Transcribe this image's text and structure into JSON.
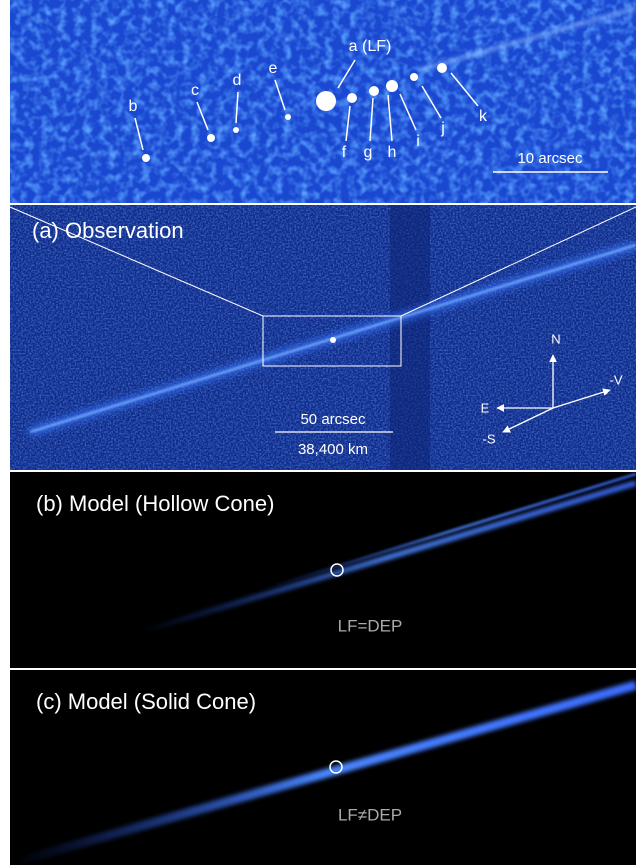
{
  "zoom_panel": {
    "labels": [
      "a (LF)",
      "b",
      "c",
      "d",
      "e",
      "f",
      "g",
      "h",
      "i",
      "j",
      "k"
    ],
    "scale_bar": "10 arcsec"
  },
  "observation": {
    "title": "(a) Observation",
    "scale_bar": "50 arcsec",
    "scale_distance": "38,400 km",
    "compass": {
      "north": "N",
      "east": "E",
      "velocity": "-V",
      "sun": "-S"
    }
  },
  "hollow_model": {
    "title": "(b) Model (Hollow Cone)",
    "note": "LF=DEP"
  },
  "solid_model": {
    "title": "(c) Model (Solid Cone)",
    "note": "LF≠DEP"
  }
}
